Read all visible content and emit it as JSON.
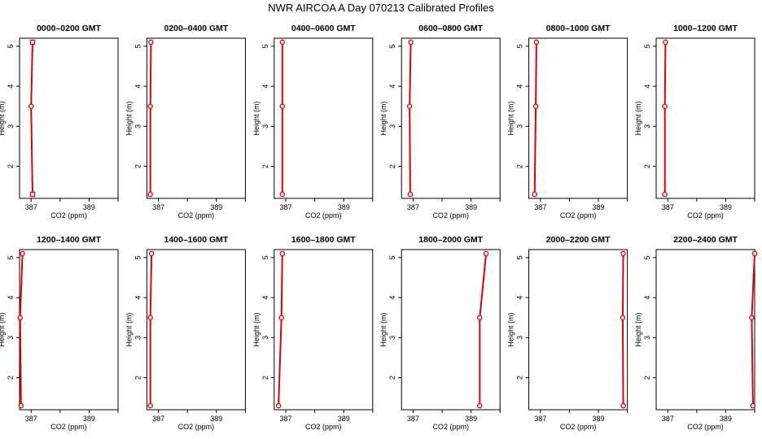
{
  "title": "NWR AIRCOA A  Day 070213  Calibrated Profiles",
  "colors": {
    "series": "#e00000",
    "axis": "#000000"
  },
  "chart_data": {
    "type": "line",
    "xlabel": "CO2 (ppm)",
    "ylabel": "Height (m)",
    "xlim": [
      386.6,
      390.0
    ],
    "ylim": [
      1.2,
      5.2
    ],
    "xticks": [
      386,
      387,
      388,
      389,
      390
    ],
    "xtick_labels": [
      "387",
      "389"
    ],
    "yticks": [
      2,
      3,
      4,
      5
    ],
    "ytick_labels": [
      "2",
      "3",
      "4",
      "5"
    ],
    "grid": false,
    "panels": [
      {
        "title": "0000–0200 GMT",
        "points": [
          {
            "height": 1.3,
            "co2": 387.05,
            "marker": "square"
          },
          {
            "height": 3.5,
            "co2": 387.0,
            "marker": "circle"
          },
          {
            "height": 5.1,
            "co2": 387.05,
            "marker": "square"
          }
        ]
      },
      {
        "title": "0200–0400 GMT",
        "points": [
          {
            "height": 1.3,
            "co2": 386.72,
            "marker": "circle"
          },
          {
            "height": 3.5,
            "co2": 386.72,
            "marker": "circle"
          },
          {
            "height": 5.1,
            "co2": 386.74,
            "marker": "circle"
          }
        ]
      },
      {
        "title": "0400–0600 GMT",
        "points": [
          {
            "height": 1.3,
            "co2": 386.88,
            "marker": "circle"
          },
          {
            "height": 3.5,
            "co2": 386.88,
            "marker": "circle"
          },
          {
            "height": 5.1,
            "co2": 386.88,
            "marker": "circle"
          }
        ]
      },
      {
        "title": "0600–0800 GMT",
        "points": [
          {
            "height": 1.3,
            "co2": 386.9,
            "marker": "circle"
          },
          {
            "height": 3.5,
            "co2": 386.88,
            "marker": "circle"
          },
          {
            "height": 5.1,
            "co2": 386.92,
            "marker": "circle"
          }
        ]
      },
      {
        "title": "0800–1000 GMT",
        "points": [
          {
            "height": 1.3,
            "co2": 386.8,
            "marker": "circle"
          },
          {
            "height": 3.5,
            "co2": 386.84,
            "marker": "circle"
          },
          {
            "height": 5.1,
            "co2": 386.86,
            "marker": "circle"
          }
        ]
      },
      {
        "title": "1000–1200 GMT",
        "points": [
          {
            "height": 1.3,
            "co2": 386.9,
            "marker": "circle"
          },
          {
            "height": 3.5,
            "co2": 386.9,
            "marker": "circle"
          },
          {
            "height": 5.1,
            "co2": 386.92,
            "marker": "circle"
          }
        ]
      },
      {
        "title": "1200–1400 GMT",
        "points": [
          {
            "height": 1.3,
            "co2": 386.65,
            "marker": "circle"
          },
          {
            "height": 3.5,
            "co2": 386.62,
            "marker": "circle"
          },
          {
            "height": 5.1,
            "co2": 386.7,
            "marker": "circle"
          }
        ]
      },
      {
        "title": "1400–1600 GMT",
        "points": [
          {
            "height": 1.3,
            "co2": 386.72,
            "marker": "circle"
          },
          {
            "height": 3.5,
            "co2": 386.72,
            "marker": "circle"
          },
          {
            "height": 5.1,
            "co2": 386.76,
            "marker": "circle"
          }
        ]
      },
      {
        "title": "1600–1800 GMT",
        "points": [
          {
            "height": 1.3,
            "co2": 386.75,
            "marker": "circle"
          },
          {
            "height": 3.5,
            "co2": 386.85,
            "marker": "circle"
          },
          {
            "height": 5.1,
            "co2": 386.88,
            "marker": "circle"
          }
        ]
      },
      {
        "title": "1800–2000 GMT",
        "points": [
          {
            "height": 1.3,
            "co2": 389.3,
            "marker": "circle"
          },
          {
            "height": 3.5,
            "co2": 389.3,
            "marker": "circle"
          },
          {
            "height": 5.1,
            "co2": 389.52,
            "marker": "circle"
          }
        ]
      },
      {
        "title": "2000–2200 GMT",
        "points": [
          {
            "height": 1.3,
            "co2": 389.86,
            "marker": "circle"
          },
          {
            "height": 3.5,
            "co2": 389.84,
            "marker": "circle"
          },
          {
            "height": 5.1,
            "co2": 389.86,
            "marker": "circle"
          }
        ]
      },
      {
        "title": "2200–2400 GMT",
        "points": [
          {
            "height": 1.3,
            "co2": 389.94,
            "marker": "circle"
          },
          {
            "height": 3.5,
            "co2": 389.9,
            "marker": "circle"
          },
          {
            "height": 5.1,
            "co2": 390.0,
            "marker": "circle"
          }
        ]
      }
    ]
  }
}
